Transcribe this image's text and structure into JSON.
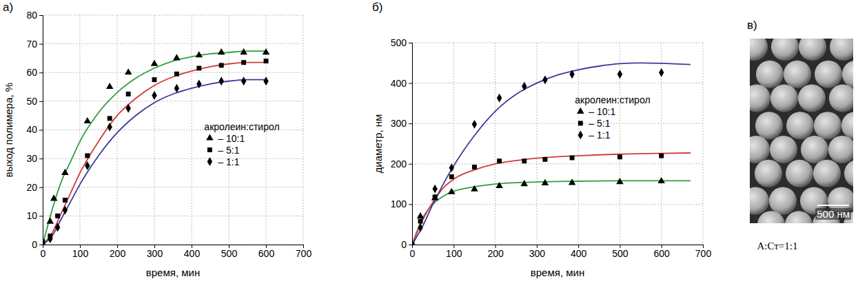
{
  "chart_data": [
    {
      "type": "scatter",
      "title": "а)",
      "x_label": "время, мин",
      "y_label": "выход полимера, %",
      "xlim": [
        0,
        700
      ],
      "xticks": [
        0,
        100,
        200,
        300,
        400,
        500,
        600,
        700
      ],
      "ylim": [
        0,
        80
      ],
      "yticks": [
        0,
        10,
        20,
        30,
        40,
        50,
        60,
        70,
        80
      ],
      "grid": true,
      "legend": "right",
      "legend_title": "акролеин:стирол",
      "series": [
        {
          "name": "– 10:1",
          "type": "scatter",
          "marker": "triangle",
          "color": "#000000",
          "x": [
            0,
            20,
            30,
            60,
            120,
            180,
            230,
            300,
            360,
            420,
            480,
            540,
            600
          ],
          "values": [
            0,
            8,
            16,
            25,
            43,
            55,
            60,
            63,
            65,
            66,
            67,
            67,
            67
          ]
        },
        {
          "name": "– 5:1",
          "type": "scatter",
          "marker": "square",
          "color": "#000000",
          "x": [
            0,
            20,
            40,
            60,
            120,
            180,
            230,
            300,
            360,
            420,
            480,
            540,
            600
          ],
          "values": [
            1,
            3,
            10,
            15.5,
            31,
            44,
            52.5,
            57.5,
            59.5,
            61.5,
            62.5,
            63.5,
            64
          ]
        },
        {
          "name": "– 1:1",
          "type": "scatter",
          "marker": "diamond",
          "color": "#000000",
          "x": [
            0,
            20,
            40,
            60,
            120,
            180,
            230,
            300,
            360,
            420,
            480,
            540,
            600
          ],
          "values": [
            0,
            2,
            6,
            12,
            27.5,
            41,
            47.5,
            52,
            54.5,
            56,
            57,
            57,
            57
          ]
        },
        {
          "type": "line",
          "line_style": "solid",
          "color": "#2e9e40",
          "x": [
            0,
            25,
            50,
            75,
            100,
            150,
            200,
            250,
            300,
            350,
            400,
            450,
            500,
            550,
            600
          ],
          "values": [
            0,
            12,
            22,
            29,
            36,
            46,
            53,
            58,
            61.5,
            64,
            65.5,
            66.5,
            67,
            67.5,
            67.5
          ]
        },
        {
          "type": "line",
          "line_style": "solid",
          "color": "#d23a3a",
          "x": [
            0,
            25,
            50,
            75,
            100,
            150,
            200,
            250,
            300,
            350,
            400,
            450,
            500,
            550,
            600
          ],
          "values": [
            0,
            4,
            11,
            18,
            25,
            36,
            45,
            51,
            55.5,
            58.5,
            60.5,
            62,
            63,
            63.5,
            63.5
          ]
        },
        {
          "type": "line",
          "line_style": "solid",
          "color": "#3a3a9c",
          "x": [
            0,
            25,
            50,
            75,
            100,
            150,
            200,
            250,
            300,
            350,
            400,
            450,
            500,
            550,
            600
          ],
          "values": [
            0,
            3,
            9,
            15,
            21,
            31,
            39,
            45,
            49.5,
            52.5,
            54.5,
            56,
            57,
            57.5,
            57.5
          ]
        }
      ]
    },
    {
      "type": "scatter",
      "title": "б)",
      "x_label": "время, мин",
      "y_label": "диаметр, нм",
      "xlim": [
        0,
        700
      ],
      "xticks": [
        0,
        100,
        200,
        300,
        400,
        500,
        600,
        700
      ],
      "ylim": [
        0,
        500
      ],
      "yticks": [
        0,
        100,
        200,
        300,
        400,
        500
      ],
      "grid": true,
      "legend": "right",
      "legend_title": "акролеин:стирол",
      "series": [
        {
          "name": "– 10:1",
          "type": "scatter",
          "marker": "triangle",
          "color": "#000000",
          "x": [
            0,
            20,
            55,
            95,
            150,
            210,
            270,
            320,
            385,
            500,
            600
          ],
          "values": [
            0,
            70,
            115,
            130,
            137,
            145,
            150,
            152,
            153,
            155,
            157
          ]
        },
        {
          "name": "– 5:1",
          "type": "scatter",
          "marker": "square",
          "color": "#000000",
          "x": [
            0,
            20,
            55,
            95,
            150,
            210,
            270,
            320,
            385,
            500,
            600
          ],
          "values": [
            0,
            58,
            118,
            168,
            192,
            207,
            207,
            211,
            215,
            217,
            220
          ]
        },
        {
          "name": "– 1:1",
          "type": "scatter",
          "marker": "diamond",
          "color": "#000000",
          "x": [
            0,
            20,
            55,
            95,
            150,
            210,
            270,
            320,
            385,
            500,
            600
          ],
          "values": [
            0,
            42,
            138,
            190,
            298,
            363,
            392,
            408,
            422,
            422,
            426
          ]
        },
        {
          "type": "line",
          "line_style": "solid",
          "color": "#2e9e40",
          "x": [
            0,
            25,
            50,
            75,
            100,
            150,
            200,
            300,
            400,
            500,
            600,
            670
          ],
          "values": [
            0,
            65,
            100,
            120,
            132,
            143,
            150,
            155,
            157,
            158,
            158,
            158
          ]
        },
        {
          "type": "line",
          "line_style": "solid",
          "color": "#d23a3a",
          "x": [
            0,
            25,
            50,
            75,
            100,
            150,
            200,
            250,
            300,
            400,
            500,
            600,
            670
          ],
          "values": [
            0,
            60,
            105,
            140,
            162,
            185,
            200,
            208,
            214,
            220,
            224,
            226,
            227
          ]
        },
        {
          "type": "line",
          "line_style": "solid",
          "color": "#3a3a9c",
          "x": [
            0,
            25,
            50,
            75,
            100,
            150,
            200,
            250,
            300,
            350,
            400,
            450,
            500,
            550,
            600,
            670
          ],
          "values": [
            0,
            45,
            100,
            150,
            195,
            270,
            330,
            372,
            400,
            420,
            433,
            442,
            448,
            450,
            449,
            446
          ]
        }
      ]
    }
  ],
  "image_panel": {
    "label": "в)",
    "scale_bar": "500 нм",
    "caption": "А:Ст=1:1"
  }
}
